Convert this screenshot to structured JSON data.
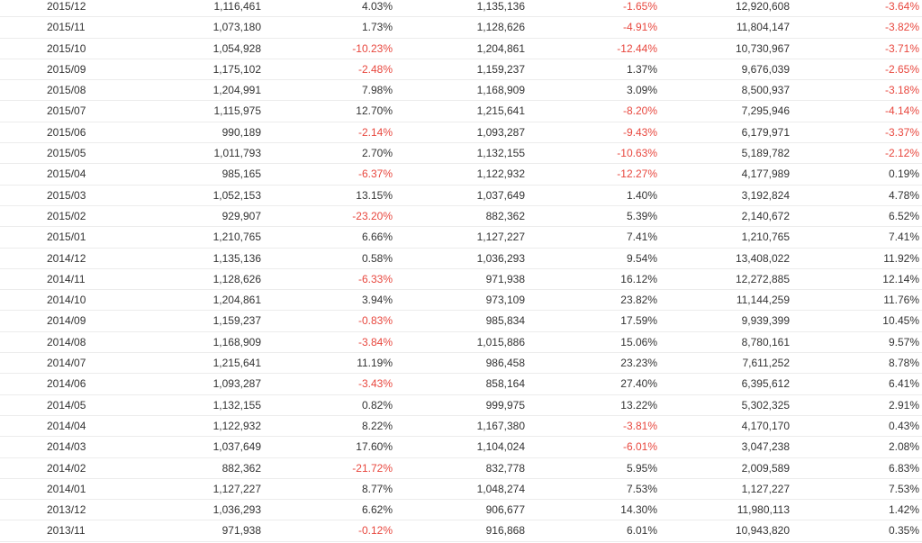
{
  "colors": {
    "text": "#333333",
    "negative": "#e8473e",
    "row_border": "#ececec"
  },
  "rows": [
    [
      "2015/12",
      "1,116,461",
      "4.03%",
      "1,135,136",
      "-1.65%",
      "12,920,608",
      "-3.64%"
    ],
    [
      "2015/11",
      "1,073,180",
      "1.73%",
      "1,128,626",
      "-4.91%",
      "11,804,147",
      "-3.82%"
    ],
    [
      "2015/10",
      "1,054,928",
      "-10.23%",
      "1,204,861",
      "-12.44%",
      "10,730,967",
      "-3.71%"
    ],
    [
      "2015/09",
      "1,175,102",
      "-2.48%",
      "1,159,237",
      "1.37%",
      "9,676,039",
      "-2.65%"
    ],
    [
      "2015/08",
      "1,204,991",
      "7.98%",
      "1,168,909",
      "3.09%",
      "8,500,937",
      "-3.18%"
    ],
    [
      "2015/07",
      "1,115,975",
      "12.70%",
      "1,215,641",
      "-8.20%",
      "7,295,946",
      "-4.14%"
    ],
    [
      "2015/06",
      "990,189",
      "-2.14%",
      "1,093,287",
      "-9.43%",
      "6,179,971",
      "-3.37%"
    ],
    [
      "2015/05",
      "1,011,793",
      "2.70%",
      "1,132,155",
      "-10.63%",
      "5,189,782",
      "-2.12%"
    ],
    [
      "2015/04",
      "985,165",
      "-6.37%",
      "1,122,932",
      "-12.27%",
      "4,177,989",
      "0.19%"
    ],
    [
      "2015/03",
      "1,052,153",
      "13.15%",
      "1,037,649",
      "1.40%",
      "3,192,824",
      "4.78%"
    ],
    [
      "2015/02",
      "929,907",
      "-23.20%",
      "882,362",
      "5.39%",
      "2,140,672",
      "6.52%"
    ],
    [
      "2015/01",
      "1,210,765",
      "6.66%",
      "1,127,227",
      "7.41%",
      "1,210,765",
      "7.41%"
    ],
    [
      "2014/12",
      "1,135,136",
      "0.58%",
      "1,036,293",
      "9.54%",
      "13,408,022",
      "11.92%"
    ],
    [
      "2014/11",
      "1,128,626",
      "-6.33%",
      "971,938",
      "16.12%",
      "12,272,885",
      "12.14%"
    ],
    [
      "2014/10",
      "1,204,861",
      "3.94%",
      "973,109",
      "23.82%",
      "11,144,259",
      "11.76%"
    ],
    [
      "2014/09",
      "1,159,237",
      "-0.83%",
      "985,834",
      "17.59%",
      "9,939,399",
      "10.45%"
    ],
    [
      "2014/08",
      "1,168,909",
      "-3.84%",
      "1,015,886",
      "15.06%",
      "8,780,161",
      "9.57%"
    ],
    [
      "2014/07",
      "1,215,641",
      "11.19%",
      "986,458",
      "23.23%",
      "7,611,252",
      "8.78%"
    ],
    [
      "2014/06",
      "1,093,287",
      "-3.43%",
      "858,164",
      "27.40%",
      "6,395,612",
      "6.41%"
    ],
    [
      "2014/05",
      "1,132,155",
      "0.82%",
      "999,975",
      "13.22%",
      "5,302,325",
      "2.91%"
    ],
    [
      "2014/04",
      "1,122,932",
      "8.22%",
      "1,167,380",
      "-3.81%",
      "4,170,170",
      "0.43%"
    ],
    [
      "2014/03",
      "1,037,649",
      "17.60%",
      "1,104,024",
      "-6.01%",
      "3,047,238",
      "2.08%"
    ],
    [
      "2014/02",
      "882,362",
      "-21.72%",
      "832,778",
      "5.95%",
      "2,009,589",
      "6.83%"
    ],
    [
      "2014/01",
      "1,127,227",
      "8.77%",
      "1,048,274",
      "7.53%",
      "1,127,227",
      "7.53%"
    ],
    [
      "2013/12",
      "1,036,293",
      "6.62%",
      "906,677",
      "14.30%",
      "11,980,113",
      "1.42%"
    ],
    [
      "2013/11",
      "971,938",
      "-0.12%",
      "916,868",
      "6.01%",
      "10,943,820",
      "0.35%"
    ]
  ]
}
